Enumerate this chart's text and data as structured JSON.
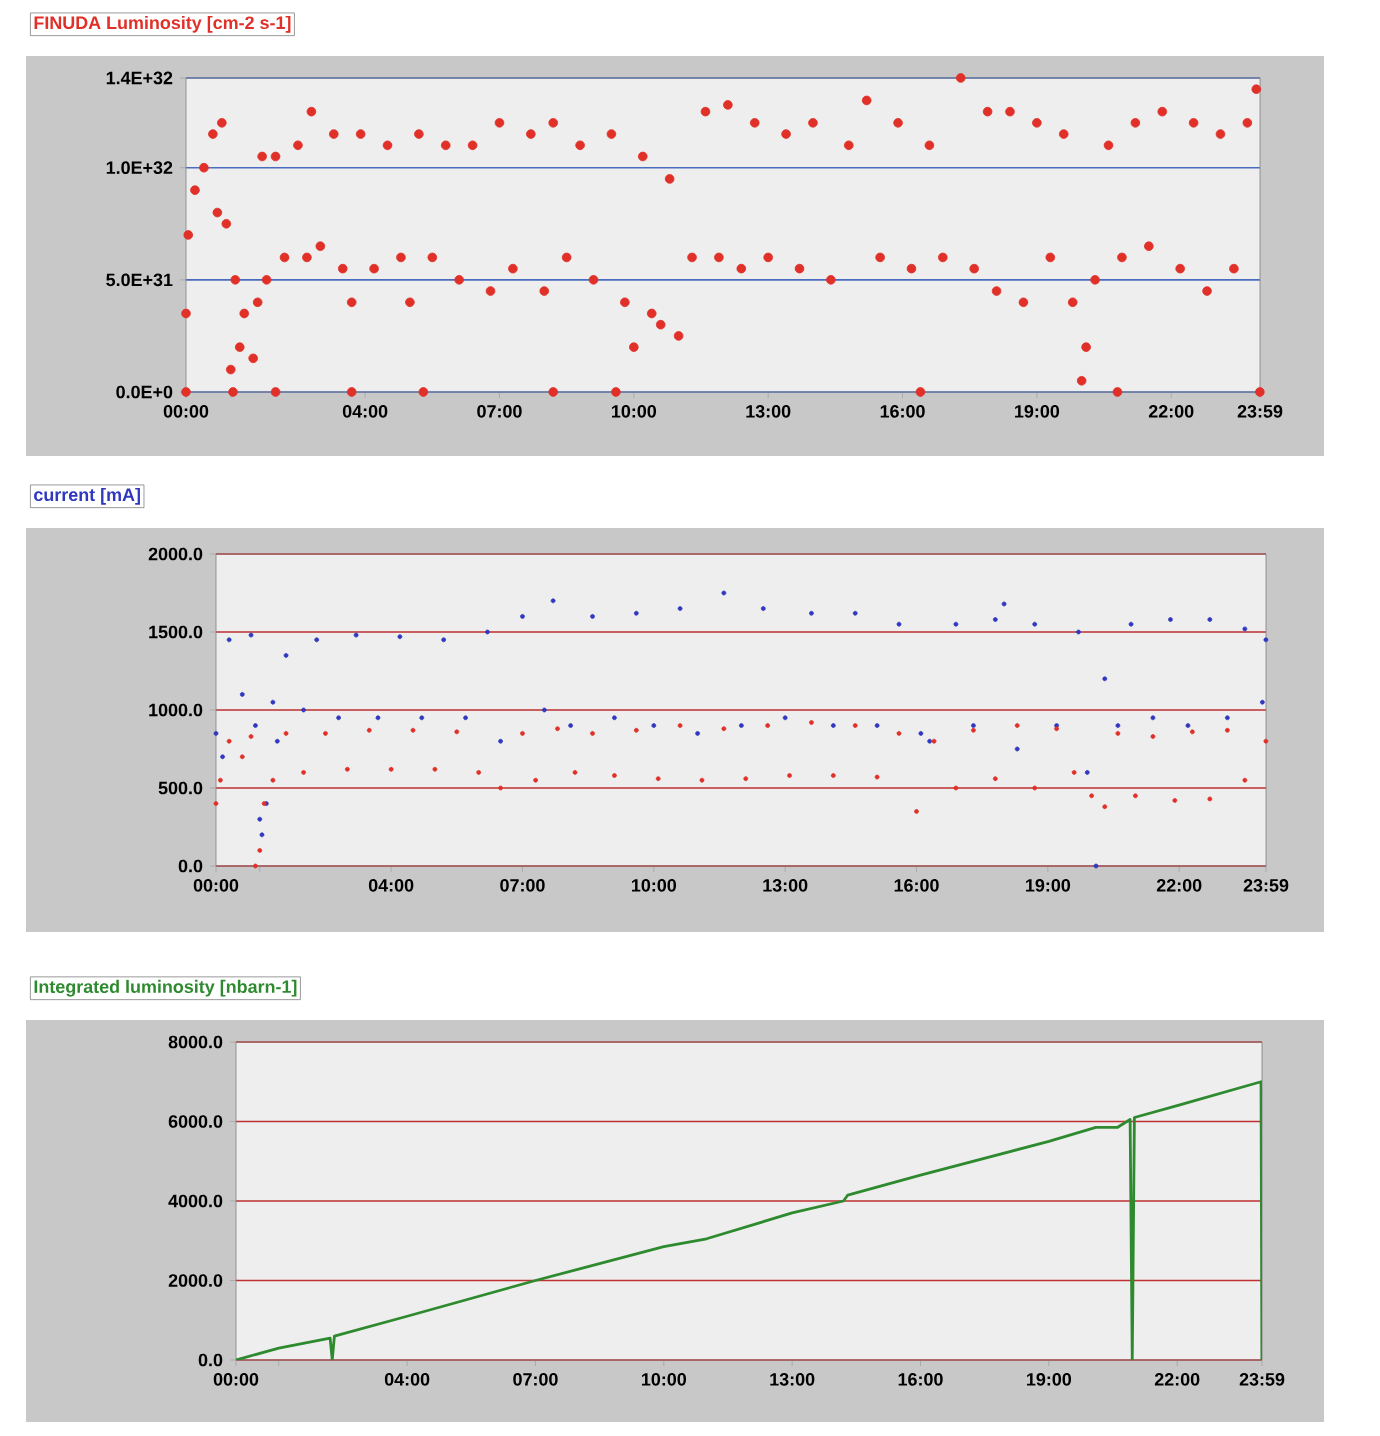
{
  "chart_data": [
    {
      "type": "scatter",
      "title": "FINUDA Luminosity [cm-2 s-1]",
      "marker": "circle",
      "grid": "y",
      "xlim": [
        0,
        23.983
      ],
      "ylim": [
        0,
        1.4e+32
      ],
      "xticks": [
        {
          "value": 0,
          "label": "00:00"
        },
        {
          "value": 1,
          "label": null
        },
        {
          "value": 4,
          "label": "04:00"
        },
        {
          "value": 7,
          "label": "07:00"
        },
        {
          "value": 10,
          "label": "10:00"
        },
        {
          "value": 13,
          "label": "13:00"
        },
        {
          "value": 16,
          "label": "16:00"
        },
        {
          "value": 19,
          "label": "19:00"
        },
        {
          "value": 22,
          "label": "22:00"
        },
        {
          "value": 23.983,
          "label": "23:59"
        }
      ],
      "yticks": [
        {
          "value": 0,
          "label": "0.0E+0"
        },
        {
          "value": 5e+31,
          "label": "5.0E+31"
        },
        {
          "value": 1e+32,
          "label": "1.0E+32"
        },
        {
          "value": 1.4e+32,
          "label": "1.4E+32"
        }
      ],
      "series": [
        {
          "color": "#e03028",
          "x": [
            0.0,
            0.0,
            0.05,
            0.2,
            0.4,
            0.6,
            0.7,
            0.8,
            0.9,
            1.0,
            1.05,
            1.1,
            1.2,
            1.3,
            1.5,
            1.6,
            1.7,
            1.8,
            2.0,
            2.0,
            2.2,
            2.5,
            2.7,
            2.8,
            3.0,
            3.3,
            3.5,
            3.7,
            3.7,
            3.9,
            4.2,
            4.5,
            4.8,
            5.0,
            5.2,
            5.3,
            5.5,
            5.8,
            6.1,
            6.4,
            6.8,
            7.0,
            7.3,
            7.7,
            8.0,
            8.2,
            8.2,
            8.5,
            8.8,
            9.1,
            9.5,
            9.6,
            9.8,
            10.0,
            10.2,
            10.4,
            10.6,
            10.8,
            11.0,
            11.3,
            11.6,
            11.9,
            12.1,
            12.4,
            12.7,
            13.0,
            13.4,
            13.7,
            14.0,
            14.4,
            14.8,
            15.2,
            15.5,
            15.9,
            16.2,
            16.4,
            16.6,
            16.9,
            17.3,
            17.6,
            17.9,
            18.1,
            18.4,
            18.7,
            19.0,
            19.3,
            19.6,
            19.8,
            20.0,
            20.1,
            20.3,
            20.6,
            20.8,
            20.9,
            21.2,
            21.5,
            21.8,
            22.2,
            22.5,
            22.8,
            23.1,
            23.4,
            23.7,
            23.9,
            23.98
          ],
          "values": [
            3.5e+31,
            0,
            7e+31,
            9e+31,
            1e+32,
            1.15e+32,
            8e+31,
            1.2e+32,
            7.5e+31,
            1e+31,
            0,
            5e+31,
            2e+31,
            3.5e+31,
            1.5e+31,
            4e+31,
            1.05e+32,
            5e+31,
            1.05e+32,
            0,
            6e+31,
            1.1e+32,
            6e+31,
            1.25e+32,
            6.5e+31,
            1.15e+32,
            5.5e+31,
            4e+31,
            0,
            1.15e+32,
            5.5e+31,
            1.1e+32,
            6e+31,
            4e+31,
            1.15e+32,
            0,
            6e+31,
            1.1e+32,
            5e+31,
            1.1e+32,
            4.5e+31,
            1.2e+32,
            5.5e+31,
            1.15e+32,
            4.5e+31,
            1.2e+32,
            0,
            6e+31,
            1.1e+32,
            5e+31,
            1.15e+32,
            0,
            4e+31,
            2e+31,
            1.05e+32,
            3.5e+31,
            3e+31,
            9.5e+31,
            2.5e+31,
            6e+31,
            1.25e+32,
            6e+31,
            1.28e+32,
            5.5e+31,
            1.2e+32,
            6e+31,
            1.15e+32,
            5.5e+31,
            1.2e+32,
            5e+31,
            1.1e+32,
            1.3e+32,
            6e+31,
            1.2e+32,
            5.5e+31,
            0,
            1.1e+32,
            6e+31,
            1.4e+32,
            5.5e+31,
            1.25e+32,
            4.5e+31,
            1.25e+32,
            4e+31,
            1.2e+32,
            6e+31,
            1.15e+32,
            4e+31,
            5e+30,
            2e+31,
            5e+31,
            1.1e+32,
            0,
            6e+31,
            1.2e+32,
            6.5e+31,
            1.25e+32,
            5.5e+31,
            1.2e+32,
            4.5e+31,
            1.15e+32,
            5.5e+31,
            1.2e+32,
            1.35e+32,
            0
          ]
        }
      ]
    },
    {
      "type": "scatter",
      "title": "current [mA]",
      "marker": "circle",
      "grid": "y",
      "xlim": [
        0,
        23.983
      ],
      "ylim": [
        0,
        2000
      ],
      "xticks": [
        {
          "value": 0,
          "label": "00:00"
        },
        {
          "value": 1,
          "label": null
        },
        {
          "value": 4,
          "label": "04:00"
        },
        {
          "value": 7,
          "label": "07:00"
        },
        {
          "value": 10,
          "label": "10:00"
        },
        {
          "value": 13,
          "label": "13:00"
        },
        {
          "value": 16,
          "label": "16:00"
        },
        {
          "value": 19,
          "label": "19:00"
        },
        {
          "value": 22,
          "label": "22:00"
        },
        {
          "value": 23.983,
          "label": "23:59"
        }
      ],
      "yticks": [
        {
          "value": 0,
          "label": "0.0"
        },
        {
          "value": 500,
          "label": "500.0"
        },
        {
          "value": 1000,
          "label": "1000.0"
        },
        {
          "value": 1500,
          "label": "1500.0"
        },
        {
          "value": 2000,
          "label": "2000.0"
        }
      ],
      "series": [
        {
          "color": "#3038c0",
          "x": [
            0,
            0.15,
            0.3,
            0.6,
            0.8,
            0.9,
            1.0,
            1.05,
            1.15,
            1.3,
            1.4,
            1.6,
            2.0,
            2.3,
            2.8,
            3.2,
            3.7,
            4.2,
            4.7,
            5.2,
            5.7,
            6.2,
            6.5,
            7.0,
            7.5,
            7.7,
            8.1,
            8.6,
            9.1,
            9.6,
            10.0,
            10.6,
            11.0,
            11.6,
            12.0,
            12.5,
            13.0,
            13.6,
            14.1,
            14.6,
            15.1,
            15.6,
            16.1,
            16.3,
            16.9,
            17.3,
            17.8,
            18.0,
            18.3,
            18.7,
            19.2,
            19.7,
            19.9,
            20.1,
            20.3,
            20.6,
            20.9,
            21.4,
            21.8,
            22.2,
            22.7,
            23.1,
            23.5,
            23.9,
            23.98
          ],
          "values": [
            850,
            700,
            1450,
            1100,
            1480,
            900,
            300,
            200,
            400,
            1050,
            800,
            1350,
            1000,
            1450,
            950,
            1480,
            950,
            1470,
            950,
            1450,
            950,
            1500,
            800,
            1600,
            1000,
            1700,
            900,
            1600,
            950,
            1620,
            900,
            1650,
            850,
            1750,
            900,
            1650,
            950,
            1620,
            900,
            1620,
            900,
            1550,
            850,
            800,
            1550,
            900,
            1580,
            1680,
            750,
            1550,
            900,
            1500,
            600,
            0,
            1200,
            900,
            1550,
            950,
            1580,
            900,
            1580,
            950,
            1520,
            1050,
            1450
          ]
        },
        {
          "color": "#e03028",
          "x": [
            0,
            0.1,
            0.3,
            0.6,
            0.8,
            0.9,
            1.0,
            1.1,
            1.3,
            1.6,
            2.0,
            2.5,
            3.0,
            3.5,
            4.0,
            4.5,
            5.0,
            5.5,
            6.0,
            6.5,
            7.0,
            7.3,
            7.8,
            8.2,
            8.6,
            9.1,
            9.6,
            10.1,
            10.6,
            11.1,
            11.6,
            12.1,
            12.6,
            13.1,
            13.6,
            14.1,
            14.6,
            15.1,
            15.6,
            16.0,
            16.4,
            16.9,
            17.3,
            17.8,
            18.3,
            18.7,
            19.2,
            19.6,
            20.0,
            20.3,
            20.6,
            21.0,
            21.4,
            21.9,
            22.3,
            22.7,
            23.1,
            23.5,
            23.98
          ],
          "values": [
            400,
            550,
            800,
            700,
            830,
            0,
            100,
            400,
            550,
            850,
            600,
            850,
            620,
            870,
            620,
            870,
            620,
            860,
            600,
            500,
            850,
            550,
            880,
            600,
            850,
            580,
            870,
            560,
            900,
            550,
            880,
            560,
            900,
            580,
            920,
            580,
            900,
            570,
            850,
            350,
            800,
            500,
            870,
            560,
            900,
            500,
            880,
            600,
            450,
            380,
            850,
            450,
            830,
            420,
            860,
            430,
            870,
            550,
            800
          ]
        }
      ]
    },
    {
      "type": "line",
      "title": "Integrated luminosity  [nbarn-1]",
      "grid": "y",
      "xlim": [
        0,
        23.983
      ],
      "ylim": [
        0,
        8000
      ],
      "xticks": [
        {
          "value": 0,
          "label": "00:00"
        },
        {
          "value": 1,
          "label": null
        },
        {
          "value": 4,
          "label": "04:00"
        },
        {
          "value": 7,
          "label": "07:00"
        },
        {
          "value": 10,
          "label": "10:00"
        },
        {
          "value": 13,
          "label": "13:00"
        },
        {
          "value": 16,
          "label": "16:00"
        },
        {
          "value": 19,
          "label": "19:00"
        },
        {
          "value": 22,
          "label": "22:00"
        },
        {
          "value": 23.983,
          "label": "23:59"
        }
      ],
      "yticks": [
        {
          "value": 0,
          "label": "0.0"
        },
        {
          "value": 2000,
          "label": "2000.0"
        },
        {
          "value": 4000,
          "label": "4000.0"
        },
        {
          "value": 6000,
          "label": "6000.0"
        },
        {
          "value": 8000,
          "label": "8000.0"
        }
      ],
      "series": [
        {
          "color": "#2e8a2e",
          "x": [
            0,
            1,
            2.2,
            2.25,
            2.3,
            4,
            7,
            10,
            11,
            13,
            14.2,
            14.3,
            16,
            19,
            20.1,
            20.6,
            20.9,
            20.95,
            21.0,
            22,
            23.96,
            23.98
          ],
          "values": [
            0,
            300,
            550,
            0,
            600,
            1100,
            2000,
            2850,
            3050,
            3700,
            4000,
            4150,
            4650,
            5500,
            5850,
            5850,
            6050,
            0,
            6100,
            6400,
            7000,
            0
          ]
        }
      ]
    }
  ]
}
